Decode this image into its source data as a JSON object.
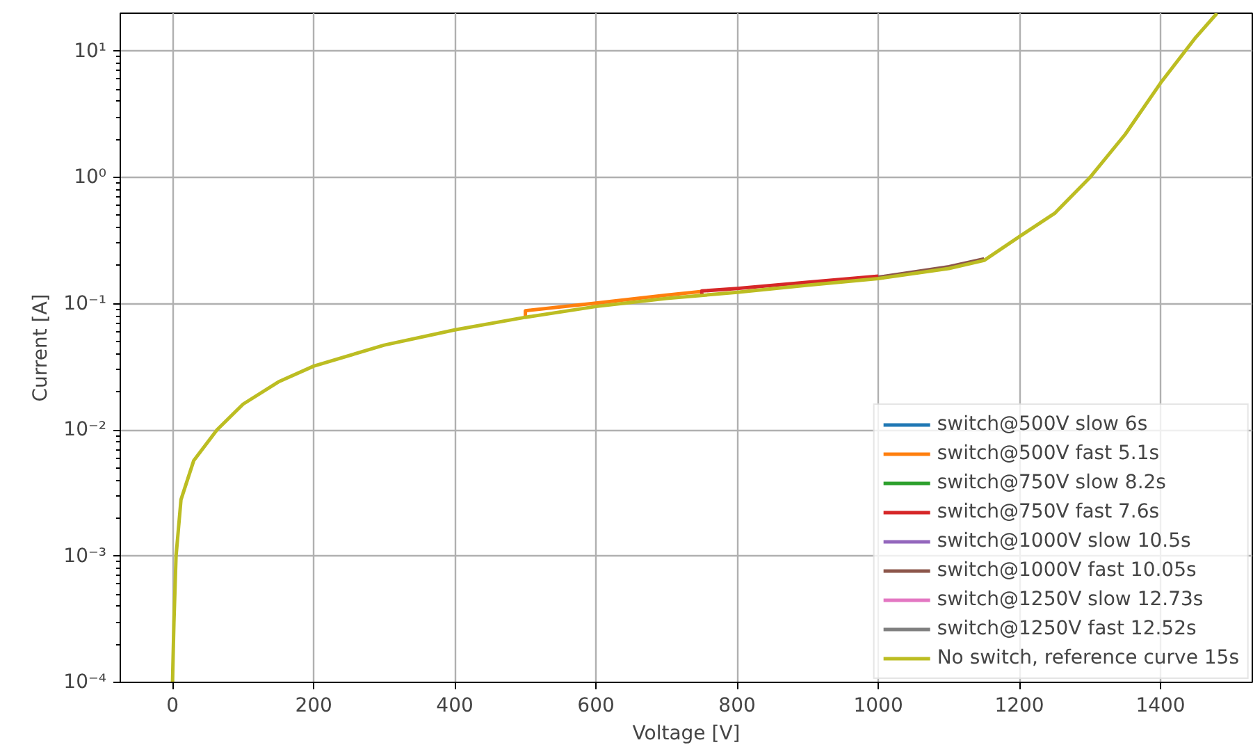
{
  "chart_data": {
    "type": "line",
    "xlabel": "Voltage [V]",
    "ylabel": "Current [A]",
    "log": "y",
    "grid": true,
    "legend": "bottom right",
    "x": [
      0,
      2,
      5,
      12,
      30,
      63,
      100,
      150,
      200,
      300,
      400,
      500,
      600,
      700,
      800,
      900,
      1000,
      1100,
      1150,
      1200,
      1250,
      1300,
      1350,
      1400,
      1450,
      1480
    ],
    "xlim": [
      -74,
      1530
    ],
    "xticks": [
      0,
      200,
      400,
      600,
      800,
      1000,
      1200,
      1400
    ],
    "ylim": [
      0.0001,
      20
    ],
    "yticks": [
      {
        "value": 0.0001,
        "label": "10⁻⁴"
      },
      {
        "value": 0.001,
        "label": "10⁻³"
      },
      {
        "value": 0.01,
        "label": "10⁻²"
      },
      {
        "value": 0.1,
        "label": "10⁻¹"
      },
      {
        "value": 1,
        "label": "10⁰"
      },
      {
        "value": 10,
        "label": "10¹"
      }
    ],
    "series": [
      {
        "name": "switch@500V slow 6s",
        "color": "#1f77b4",
        "values": [
          null,
          null,
          null,
          null,
          null,
          null,
          null,
          null,
          null,
          null,
          null,
          null,
          null,
          null,
          null,
          null,
          null,
          null,
          null,
          null,
          null,
          null,
          null,
          null,
          null,
          null
        ]
      },
      {
        "name": "switch@500V fast 5.1s",
        "color": "#ff7f0e",
        "x": [
          500,
          500,
          600,
          700,
          750
        ],
        "values": [
          0.078,
          0.088,
          0.101,
          0.117,
          0.125
        ]
      },
      {
        "name": "switch@750V slow 8.2s",
        "color": "#2ca02c",
        "values": [
          null,
          null,
          null,
          null,
          null,
          null,
          null,
          null,
          null,
          null,
          null,
          null,
          null,
          null,
          null,
          null,
          null,
          null,
          null,
          null,
          null,
          null,
          null,
          null,
          null,
          null
        ]
      },
      {
        "name": "switch@750V fast 7.6s",
        "color": "#d62728",
        "x": [
          750,
          750,
          800,
          900,
          1000
        ],
        "values": [
          0.117,
          0.126,
          0.132,
          0.148,
          0.165
        ]
      },
      {
        "name": "switch@1000V slow 10.5s",
        "color": "#9467bd",
        "values": [
          null,
          null,
          null,
          null,
          null,
          null,
          null,
          null,
          null,
          null,
          null,
          null,
          null,
          null,
          null,
          null,
          null,
          null,
          null,
          null,
          null,
          null,
          null,
          null,
          null,
          null
        ]
      },
      {
        "name": "switch@1000V fast 10.05s",
        "color": "#8c564b",
        "x": [
          1000,
          1100,
          1150
        ],
        "values": [
          0.162,
          0.196,
          0.226
        ]
      },
      {
        "name": "switch@1250V slow 12.73s",
        "color": "#e377c2",
        "values": [
          null,
          null,
          null,
          null,
          null,
          null,
          null,
          null,
          null,
          null,
          null,
          null,
          null,
          null,
          null,
          null,
          null,
          null,
          null,
          null,
          null,
          null,
          null,
          null,
          null,
          null
        ]
      },
      {
        "name": "switch@1250V fast 12.52s",
        "color": "#7f7f7f",
        "values": [
          null,
          null,
          null,
          null,
          null,
          null,
          null,
          null,
          null,
          null,
          null,
          null,
          null,
          null,
          null,
          null,
          null,
          null,
          null,
          null,
          null,
          null,
          null,
          null,
          null,
          null
        ]
      },
      {
        "name": "No switch, reference curve 15s",
        "color": "#bcbd22",
        "values": [
          0.0001,
          0.0003,
          0.001,
          0.0028,
          0.0057,
          0.01,
          0.016,
          0.024,
          0.032,
          0.047,
          0.062,
          0.078,
          0.095,
          0.11,
          0.123,
          0.14,
          0.158,
          0.19,
          0.22,
          0.34,
          0.52,
          1.0,
          2.2,
          5.6,
          12.9,
          20
        ]
      }
    ]
  }
}
